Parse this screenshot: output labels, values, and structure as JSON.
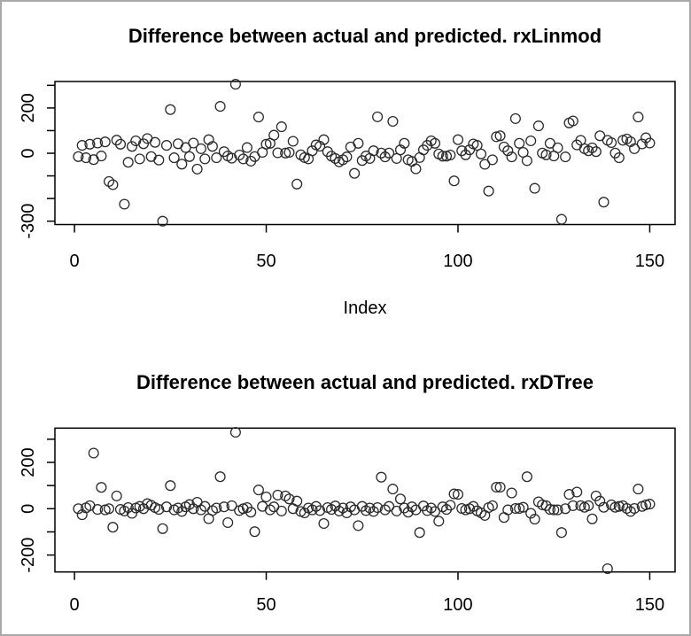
{
  "figure": {
    "background": "#ffffff",
    "frame_border_color": "#a9a9a9",
    "axis_color": "#000000",
    "point_outline_color": "#2b2b2b"
  },
  "chart_data": [
    {
      "type": "scatter",
      "title": "Difference between actual and predicted. rxLinmod",
      "xlabel": "Index",
      "ylabel": "",
      "marker": "open-circle",
      "grid": false,
      "legend": "none",
      "x_ticks": [
        0,
        50,
        100,
        150
      ],
      "y_ticks": [
        300,
        200,
        100,
        0,
        -100,
        -200,
        -300
      ],
      "y_labeled_ticks": [
        200,
        0,
        -300
      ],
      "xlim": [
        -5.1,
        156.6
      ],
      "ylim": [
        -315,
        317
      ],
      "x_description": "observation index 1..150",
      "values": [
        -15,
        35,
        -20,
        40,
        -28,
        45,
        -12,
        50,
        -125,
        -139,
        58,
        40,
        -225,
        -40,
        30,
        55,
        -25,
        42,
        65,
        -15,
        48,
        -30,
        -300,
        35,
        193,
        -20,
        42,
        -48,
        25,
        -15,
        45,
        -70,
        20,
        -25,
        60,
        30,
        -20,
        207,
        7,
        -12,
        -22,
        305,
        -8,
        -25,
        25,
        -35,
        -15,
        160,
        4,
        40,
        44,
        80,
        2,
        117,
        1,
        4,
        53,
        -136,
        -7,
        -19,
        -25,
        11,
        37,
        31,
        60,
        7,
        -13,
        -23,
        -38,
        -29,
        -16,
        28,
        -89,
        44,
        -32,
        -12,
        -23,
        11,
        161,
        1,
        -16,
        1,
        141,
        -23,
        15,
        44,
        -29,
        -36,
        -69,
        -19,
        15,
        35,
        55,
        44,
        -3,
        -13,
        -13,
        -8,
        -122,
        60,
        11,
        -7,
        15,
        41,
        35,
        -3,
        -49,
        -167,
        -29,
        73,
        77,
        28,
        11,
        -16,
        153,
        44,
        4,
        -33,
        55,
        -155,
        121,
        1,
        -7,
        44,
        -12,
        24,
        -292,
        -16,
        134,
        143,
        37,
        57,
        20,
        11,
        24,
        7,
        77,
        -216,
        57,
        47,
        1,
        -20,
        57,
        63,
        51,
        20,
        160,
        41,
        68,
        45
      ]
    },
    {
      "type": "scatter",
      "title": "Difference between actual and predicted. rxDTree",
      "xlabel": "",
      "ylabel": "",
      "marker": "open-circle",
      "grid": false,
      "legend": "none",
      "x_ticks": [
        0,
        50,
        100,
        150
      ],
      "y_ticks": [
        300,
        200,
        100,
        0,
        -100,
        -200
      ],
      "y_labeled_ticks": [
        200,
        0,
        -200
      ],
      "xlim": [
        -5.1,
        156.6
      ],
      "ylim": [
        -273,
        348
      ],
      "x_description": "observation index 1..150",
      "values": [
        0,
        -26,
        4,
        13,
        240,
        -3,
        92,
        -5,
        0,
        -80,
        55,
        -3,
        -10,
        5,
        -20,
        3,
        10,
        0,
        22,
        15,
        5,
        -3,
        -86,
        8,
        100,
        -5,
        3,
        -12,
        8,
        18,
        0,
        28,
        -5,
        10,
        -43,
        -8,
        3,
        138,
        8,
        -60,
        13,
        330,
        -8,
        0,
        5,
        -15,
        -99,
        81,
        10,
        51,
        -5,
        8,
        59,
        -10,
        55,
        42,
        0,
        33,
        -12,
        -18,
        3,
        -5,
        10,
        -8,
        -64,
        5,
        -3,
        12,
        -10,
        3,
        -18,
        8,
        -5,
        -73,
        10,
        -8,
        3,
        -12,
        5,
        136,
        -5,
        10,
        85,
        -10,
        42,
        3,
        -15,
        8,
        -5,
        -103,
        12,
        -8,
        3,
        -12,
        -54,
        8,
        -3,
        15,
        64,
        62,
        1,
        -5,
        0,
        10,
        -9,
        -18,
        -29,
        5,
        13,
        93,
        93,
        -38,
        -5,
        68,
        1,
        1,
        6,
        138,
        -20,
        -45,
        30,
        17,
        13,
        -3,
        -5,
        -5,
        -103,
        0,
        62,
        13,
        72,
        13,
        6,
        13,
        -44,
        55,
        33,
        6,
        -259,
        17,
        6,
        10,
        13,
        1,
        -12,
        1,
        85,
        10,
        17,
        20
      ]
    }
  ]
}
